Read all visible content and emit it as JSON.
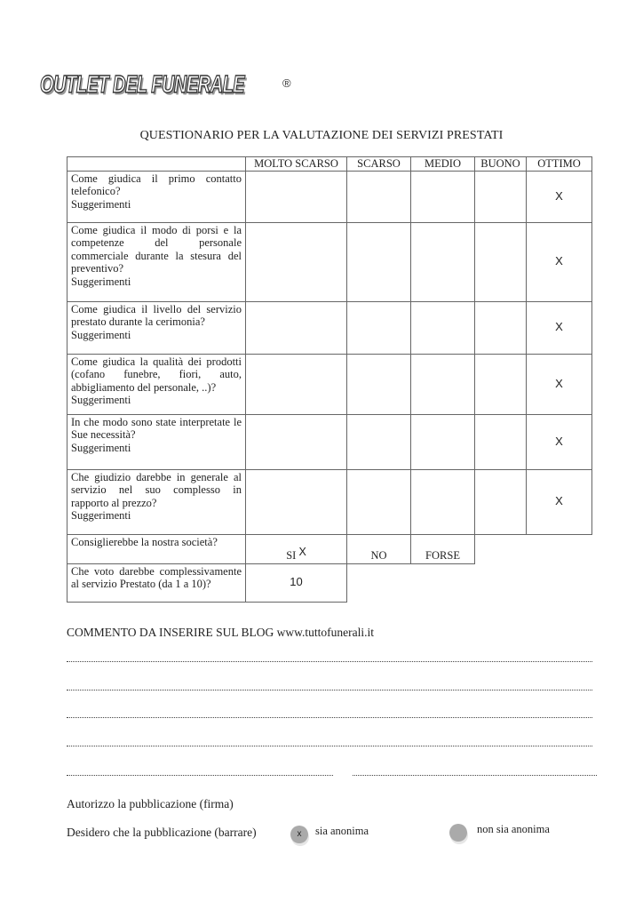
{
  "logo": {
    "text": "OUTLET DEL FUNERALE",
    "registered": "®"
  },
  "title": "QUESTIONARIO PER LA VALUTAZIONE DEI SERVIZI PRESTATI",
  "table": {
    "columns": [
      "MOLTO SCARSO",
      "SCARSO",
      "MEDIO",
      "BUONO",
      "OTTIMO"
    ],
    "rows": [
      {
        "question": "Come giudica il primo contatto telefonico?",
        "suggestion": "Suggerimenti",
        "selected": "OTTIMO",
        "mark": "X"
      },
      {
        "question": "Come giudica il modo di porsi e la competenze del personale commerciale durante la stesura del preventivo?",
        "suggestion": "Suggerimenti",
        "selected": "OTTIMO",
        "mark": "X"
      },
      {
        "question": "Come giudica il livello del servizio prestato durante la cerimonia?",
        "suggestion": "Suggerimenti",
        "selected": "OTTIMO",
        "mark": "X"
      },
      {
        "question": "Come giudica la qualità dei prodotti (cofano funebre, fiori, auto, abbigliamento del personale, ..)?",
        "suggestion": "Suggerimenti",
        "selected": "OTTIMO",
        "mark": "X"
      },
      {
        "question": "In che modo sono state interpretate le Sue necessità?",
        "suggestion": "Suggerimenti",
        "selected": "OTTIMO",
        "mark": "X"
      },
      {
        "question": "Che giudizio darebbe in generale al servizio nel suo complesso in rapporto al prezzo?",
        "suggestion": "Suggerimenti",
        "selected": "OTTIMO",
        "mark": "X"
      }
    ],
    "recommend": {
      "question": "Consiglierebbe la nostra società?",
      "options": [
        "SI",
        "NO",
        "FORSE"
      ],
      "selected": "SI",
      "mark": "X"
    },
    "vote": {
      "question": "Che voto darebbe complessivamente al servizio Prestato (da 1 a 10)?",
      "value": "10"
    }
  },
  "comment": {
    "label": "COMMENTO DA INSERIRE SUL BLOG www.tuttofunerali.it"
  },
  "authorize": {
    "label": "Autorizzo la pubblicazione (firma)"
  },
  "publication": {
    "label": "Desidero che la pubblicazione (barrare)",
    "options": [
      {
        "label": "sia anonima",
        "checked": true,
        "mark": "x"
      },
      {
        "label": "non sia anonima",
        "checked": false,
        "mark": ""
      }
    ]
  }
}
